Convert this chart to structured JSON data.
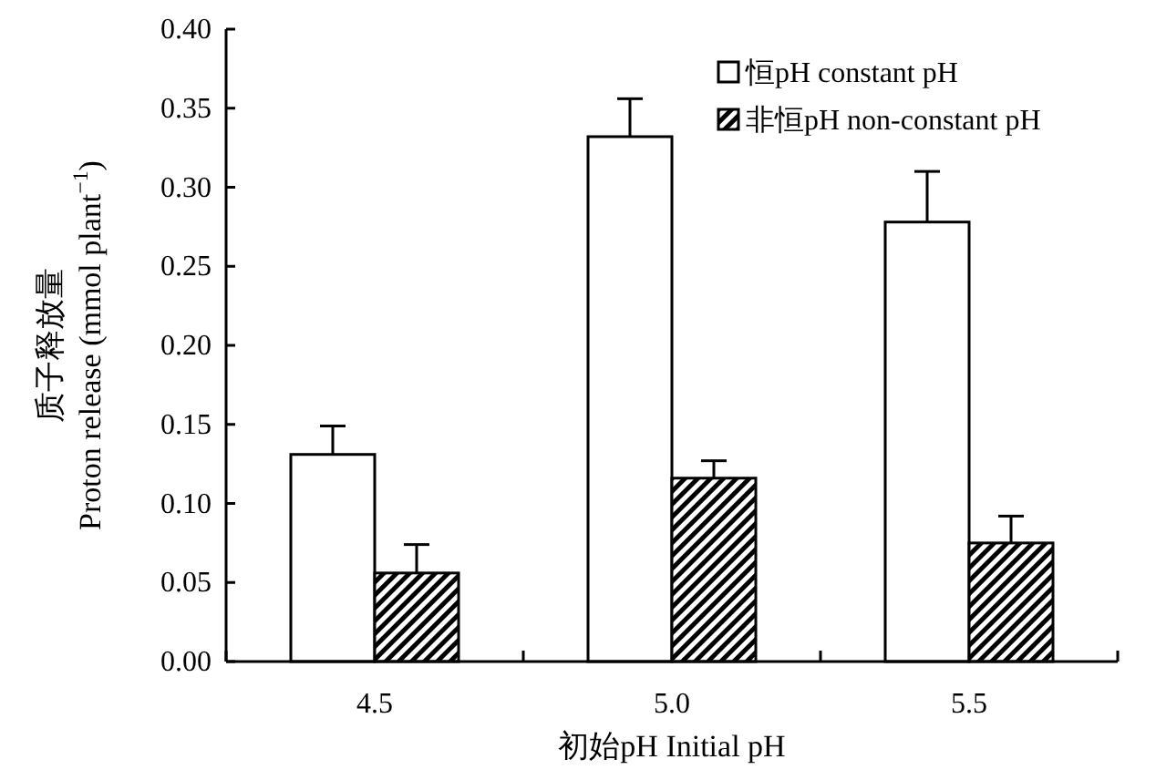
{
  "chart_data": {
    "type": "bar",
    "xlabel": "初始pH Initial pH",
    "ylabel": "质子释放量\nProton release (mmol plant$^{−1}$)",
    "categories": [
      "4.5",
      "5.0",
      "5.5"
    ],
    "series": [
      {
        "name": "恒pH constant pH",
        "color": "#ffffff",
        "values": [
          0.131,
          0.332,
          0.278
        ],
        "errors": [
          0.018,
          0.024,
          0.032
        ]
      },
      {
        "name": "非恒pH non-constant pH",
        "color": "#000000",
        "values": [
          0.056,
          0.116,
          0.075
        ],
        "errors": [
          0.018,
          0.011,
          0.017
        ]
      }
    ],
    "ylim": [
      0,
      0.4
    ],
    "yticks": [
      {
        "value": 0,
        "label": "0.00"
      },
      {
        "value": 0.05,
        "label": "0.05"
      },
      {
        "value": 0.1,
        "label": "0.10"
      },
      {
        "value": 0.15,
        "label": "0.15"
      },
      {
        "value": 0.2,
        "label": "0.20"
      },
      {
        "value": 0.25,
        "label": "0.25"
      },
      {
        "value": 0.3,
        "label": "0.30"
      },
      {
        "value": 0.35,
        "label": "0.35"
      },
      {
        "value": 0.4,
        "label": "0.40"
      }
    ],
    "grid": false,
    "legend": "top right"
  }
}
